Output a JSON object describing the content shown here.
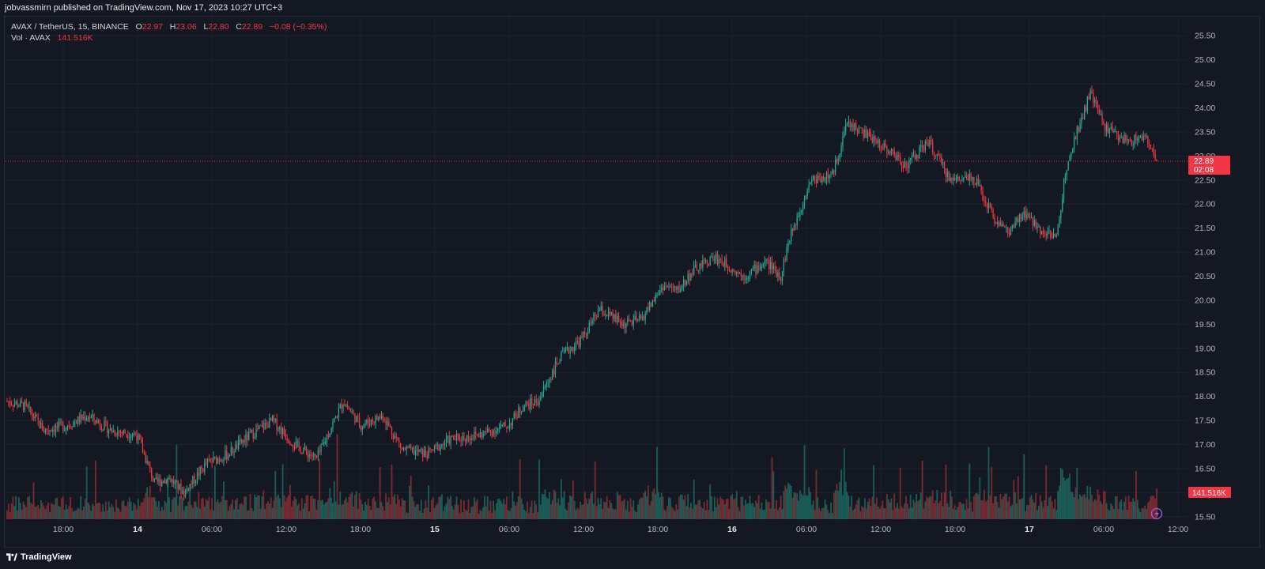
{
  "header": {
    "published": "jobvassmirn published on TradingView.com, Nov 17, 2023 10:27 UTC+3"
  },
  "legend": {
    "symbol": "AVAX / TetherUS, 15, BINANCE",
    "o_label": "O",
    "o_value": "22.97",
    "h_label": "H",
    "h_value": "23.06",
    "l_label": "L",
    "l_value": "22.80",
    "c_label": "C",
    "c_value": "22.89",
    "change": "−0.08 (−0.35%)",
    "vol_label": "Vol · AVAX",
    "vol_value": "141.516K"
  },
  "footer": {
    "brand": "TradingView"
  },
  "colors": {
    "background": "#141823",
    "up": "#22ab94",
    "down": "#f23645",
    "vol_up": "#1b5e58",
    "vol_down": "#7a2a31",
    "grid": "#1e2230"
  },
  "chart_data": {
    "type": "candlestick",
    "symbol": "AVAX / TetherUS",
    "interval": "15",
    "exchange": "BINANCE",
    "ylim": [
      15.25,
      25.75
    ],
    "y_ticks": [
      "25.50",
      "25.00",
      "24.50",
      "24.00",
      "23.50",
      "23.00",
      "22.50",
      "22.00",
      "21.50",
      "21.00",
      "20.50",
      "20.00",
      "19.50",
      "19.00",
      "18.50",
      "18.00",
      "17.50",
      "17.00",
      "16.50",
      "16.00",
      "15.50"
    ],
    "x_ticks": [
      "18:00",
      "14",
      "06:00",
      "12:00",
      "18:00",
      "15",
      "06:00",
      "12:00",
      "18:00",
      "16",
      "06:00",
      "12:00",
      "18:00",
      "17",
      "06:00",
      "12:00"
    ],
    "bold_x_ticks": [
      "14",
      "15",
      "16",
      "17"
    ],
    "last_price": "22.89",
    "countdown": "02:08",
    "last_volume": "141.516K",
    "price_path_keypoints": [
      [
        0,
        17.9
      ],
      [
        12,
        17.8
      ],
      [
        25,
        17.3
      ],
      [
        40,
        17.4
      ],
      [
        55,
        17.6
      ],
      [
        70,
        17.3
      ],
      [
        88,
        17.2
      ],
      [
        100,
        16.2
      ],
      [
        110,
        16.3
      ],
      [
        120,
        16.0
      ],
      [
        135,
        16.6
      ],
      [
        150,
        16.8
      ],
      [
        165,
        17.2
      ],
      [
        180,
        17.5
      ],
      [
        195,
        17.0
      ],
      [
        210,
        16.7
      ],
      [
        228,
        17.9
      ],
      [
        240,
        17.4
      ],
      [
        255,
        17.6
      ],
      [
        268,
        16.9
      ],
      [
        285,
        16.8
      ],
      [
        300,
        17.1
      ],
      [
        320,
        17.2
      ],
      [
        340,
        17.4
      ],
      [
        350,
        17.8
      ],
      [
        360,
        17.9
      ],
      [
        375,
        18.8
      ],
      [
        390,
        19.2
      ],
      [
        402,
        19.8
      ],
      [
        418,
        19.5
      ],
      [
        430,
        19.6
      ],
      [
        445,
        20.3
      ],
      [
        455,
        20.2
      ],
      [
        465,
        20.6
      ],
      [
        480,
        20.9
      ],
      [
        500,
        20.5
      ],
      [
        515,
        20.8
      ],
      [
        525,
        20.5
      ],
      [
        530,
        21.2
      ],
      [
        545,
        22.5
      ],
      [
        560,
        22.6
      ],
      [
        570,
        23.7
      ],
      [
        580,
        23.5
      ],
      [
        595,
        23.2
      ],
      [
        610,
        22.8
      ],
      [
        625,
        23.3
      ],
      [
        640,
        22.5
      ],
      [
        655,
        22.6
      ],
      [
        670,
        21.7
      ],
      [
        680,
        21.4
      ],
      [
        690,
        21.8
      ],
      [
        700,
        21.5
      ],
      [
        712,
        21.3
      ],
      [
        720,
        23.0
      ],
      [
        735,
        24.3
      ],
      [
        745,
        23.6
      ],
      [
        760,
        23.3
      ],
      [
        772,
        23.4
      ],
      [
        780,
        22.89
      ]
    ],
    "volume_spikes": [
      {
        "x": "18:00 (13th)",
        "volume_k": "high"
      },
      {
        "x": "12:00 (15th)",
        "volume_k": "high"
      },
      {
        "x": "18:00 (15th)",
        "volume_k": "high"
      },
      {
        "x": "09:00 (16th)",
        "volume_k": "high"
      },
      {
        "x": "03:00 (17th)",
        "volume_k": "high"
      }
    ],
    "grid": true
  }
}
